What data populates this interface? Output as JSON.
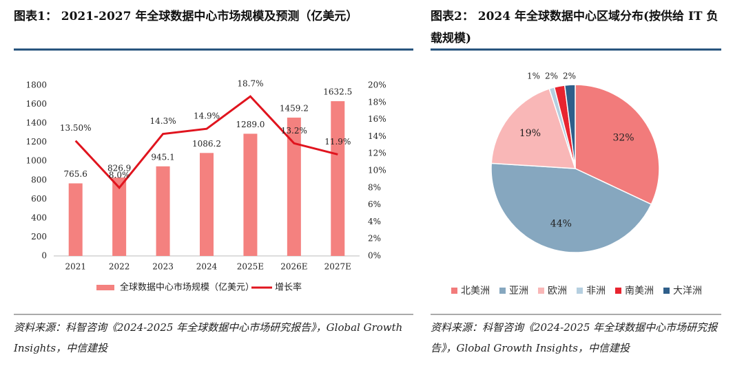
{
  "chart_data": [
    {
      "type": "combo",
      "title": "图表1：  2021-2027 年全球数据中心市场规模及预测（亿美元）",
      "categories": [
        "2021",
        "2022",
        "2023",
        "2024",
        "2025E",
        "2026E",
        "2027E"
      ],
      "series": [
        {
          "name": "全球数据中心市场规模（亿美元）",
          "type": "bar",
          "color": "#f4817f",
          "values": [
            765.6,
            826.9,
            945.1,
            1086.2,
            1289.0,
            1459.2,
            1632.5
          ],
          "value_labels": [
            "765.6",
            "826.9",
            "945.1",
            "1086.2",
            "1289.0",
            "1459.2",
            "1632.5"
          ]
        },
        {
          "name": "增长率",
          "type": "line",
          "axis": "y2",
          "color": "#e0141e",
          "values": [
            13.5,
            8.0,
            14.3,
            14.9,
            18.7,
            13.2,
            11.9
          ],
          "value_labels": [
            "13.50%",
            "8.0%",
            "14.3%",
            "14.9%",
            "18.7%",
            "13.2%",
            "11.9%"
          ]
        }
      ],
      "ylim": [
        0,
        1800
      ],
      "yticks": [
        0,
        200,
        400,
        600,
        800,
        1000,
        1200,
        1400,
        1600,
        1800
      ],
      "y2lim": [
        0,
        20
      ],
      "y2ticks": [
        {
          "value": 0,
          "label": "0%"
        },
        {
          "value": 2,
          "label": "2%"
        },
        {
          "value": 4,
          "label": "4%"
        },
        {
          "value": 6,
          "label": "6%"
        },
        {
          "value": 8,
          "label": "8%"
        },
        {
          "value": 10,
          "label": "10%"
        },
        {
          "value": 12,
          "label": "12%"
        },
        {
          "value": 14,
          "label": "14%"
        },
        {
          "value": 16,
          "label": "16%"
        },
        {
          "value": 18,
          "label": "18%"
        },
        {
          "value": 20,
          "label": "20%"
        }
      ],
      "legend": "bottom",
      "source": "资料来源：科智咨询《2024-2025 年全球数据中心市场研究报告》，Global Growth Insights，中信建投"
    },
    {
      "type": "pie",
      "title": "图表2：  2024 年全球数据中心区域分布(按供给 IT 负载规模)",
      "categories": [
        "北美洲",
        "亚洲",
        "欧洲",
        "非洲",
        "南美洲",
        "大洋洲"
      ],
      "values": [
        32,
        44,
        19,
        1,
        2,
        2
      ],
      "value_labels": [
        "32%",
        "44%",
        "19%",
        "1%",
        "2%",
        "2%"
      ],
      "colors": [
        "#f27b7b",
        "#86a7bf",
        "#f9b7b7",
        "#b5cfe0",
        "#e8242f",
        "#2f5f8a"
      ],
      "legend": "bottom",
      "source": "资料来源：科智咨询《2024-2025 年全球数据中心市场研究报告》，Global Growth Insights，中信建投"
    }
  ]
}
